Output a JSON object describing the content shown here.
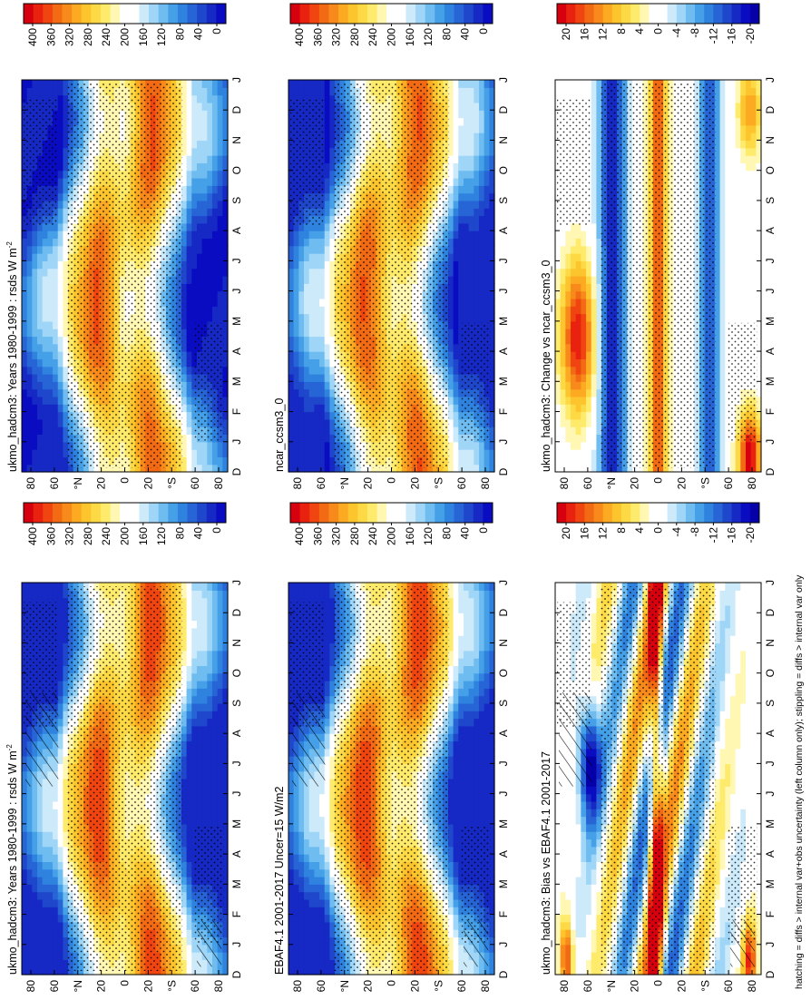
{
  "figure": {
    "orientation": "rotated-90-clockwise",
    "footnote": "hatching = diffs > internal var+obs uncertainty (left column only); stippling = diffs > internal var only"
  },
  "chart_data": [
    {
      "type": "heatmap",
      "title": "ukmo_hadcm3: Years 1980-1999 : rsds W m",
      "title_superscript": "-2",
      "x_tick_labels": [
        "D",
        "J",
        "F",
        "M",
        "A",
        "M",
        "J",
        "J",
        "A",
        "S",
        "O",
        "N",
        "D",
        "J"
      ],
      "y_tick_labels": [
        "80",
        "60",
        "°N",
        "20",
        "0",
        "20",
        "°S",
        "60",
        "80"
      ],
      "colorbar": {
        "levels": [
          400,
          380,
          360,
          340,
          320,
          300,
          280,
          260,
          240,
          220,
          200,
          180,
          160,
          140,
          120,
          100,
          80,
          60,
          40,
          20,
          0
        ],
        "tick_labels": [
          "400",
          "360",
          "320",
          "280",
          "240",
          "200",
          "160",
          "120",
          "80",
          "40",
          "0"
        ],
        "colors": [
          "#d7000f",
          "#e8220f",
          "#f04510",
          "#f36a14",
          "#f78a1a",
          "#fbaa22",
          "#fcc52e",
          "#fdda45",
          "#feea6b",
          "#fff7b2",
          "#ffffff",
          "#ffffff",
          "#cdeafa",
          "#9fd6f7",
          "#6fbcf0",
          "#45a0e8",
          "#2f83df",
          "#2765d6",
          "#1f47cc",
          "#1629c4",
          "#0a0cc2"
        ]
      },
      "hatching": true,
      "stippling": true
    },
    {
      "type": "heatmap",
      "title": "ukmo_hadcm3: Years 1980-1999 : rsds W m",
      "title_superscript": "-2",
      "x_tick_labels": [
        "D",
        "J",
        "F",
        "M",
        "A",
        "M",
        "J",
        "J",
        "A",
        "S",
        "O",
        "N",
        "D",
        "J"
      ],
      "y_tick_labels": [
        "80",
        "60",
        "°N",
        "20",
        "0",
        "20",
        "°S",
        "60",
        "80"
      ],
      "colorbar": {
        "levels": [
          400,
          380,
          360,
          340,
          320,
          300,
          280,
          260,
          240,
          220,
          200,
          180,
          160,
          140,
          120,
          100,
          80,
          60,
          40,
          20,
          0
        ],
        "tick_labels": [
          "400",
          "360",
          "320",
          "280",
          "240",
          "200",
          "160",
          "120",
          "80",
          "40",
          "0"
        ],
        "colors": [
          "#d7000f",
          "#e8220f",
          "#f04510",
          "#f36a14",
          "#f78a1a",
          "#fbaa22",
          "#fcc52e",
          "#fdda45",
          "#feea6b",
          "#fff7b2",
          "#ffffff",
          "#ffffff",
          "#cdeafa",
          "#9fd6f7",
          "#6fbcf0",
          "#45a0e8",
          "#2f83df",
          "#2765d6",
          "#1f47cc",
          "#1629c4",
          "#0a0cc2"
        ]
      },
      "hatching": false,
      "stippling": true
    },
    {
      "type": "heatmap",
      "title": "EBAF4.1 2001-2017 Uncer=15 W/m2",
      "title_superscript": "",
      "x_tick_labels": [
        "D",
        "J",
        "F",
        "M",
        "A",
        "M",
        "J",
        "J",
        "A",
        "S",
        "O",
        "N",
        "D",
        "J"
      ],
      "y_tick_labels": [
        "80",
        "60",
        "°N",
        "20",
        "0",
        "20",
        "°S",
        "60",
        "80"
      ],
      "colorbar": {
        "levels": [
          400,
          380,
          360,
          340,
          320,
          300,
          280,
          260,
          240,
          220,
          200,
          180,
          160,
          140,
          120,
          100,
          80,
          60,
          40,
          20,
          0
        ],
        "tick_labels": [
          "400",
          "360",
          "320",
          "280",
          "240",
          "200",
          "160",
          "120",
          "80",
          "40",
          "0"
        ],
        "colors": [
          "#d7000f",
          "#e8220f",
          "#f04510",
          "#f36a14",
          "#f78a1a",
          "#fbaa22",
          "#fcc52e",
          "#fdda45",
          "#feea6b",
          "#fff7b2",
          "#ffffff",
          "#ffffff",
          "#cdeafa",
          "#9fd6f7",
          "#6fbcf0",
          "#45a0e8",
          "#2f83df",
          "#2765d6",
          "#1f47cc",
          "#1629c4",
          "#0a0cc2"
        ]
      },
      "hatching": true,
      "stippling": true
    },
    {
      "type": "heatmap",
      "title": "ncar_ccsm3_0",
      "title_superscript": "",
      "x_tick_labels": [
        "D",
        "J",
        "F",
        "M",
        "A",
        "M",
        "J",
        "J",
        "A",
        "S",
        "O",
        "N",
        "D",
        "J"
      ],
      "y_tick_labels": [
        "80",
        "60",
        "°N",
        "20",
        "0",
        "20",
        "°S",
        "60",
        "80"
      ],
      "colorbar": {
        "levels": [
          400,
          380,
          360,
          340,
          320,
          300,
          280,
          260,
          240,
          220,
          200,
          180,
          160,
          140,
          120,
          100,
          80,
          60,
          40,
          20,
          0
        ],
        "tick_labels": [
          "400",
          "360",
          "320",
          "280",
          "240",
          "200",
          "160",
          "120",
          "80",
          "40",
          "0"
        ],
        "colors": [
          "#d7000f",
          "#e8220f",
          "#f04510",
          "#f36a14",
          "#f78a1a",
          "#fbaa22",
          "#fcc52e",
          "#fdda45",
          "#feea6b",
          "#fff7b2",
          "#ffffff",
          "#ffffff",
          "#cdeafa",
          "#9fd6f7",
          "#6fbcf0",
          "#45a0e8",
          "#2f83df",
          "#2765d6",
          "#1f47cc",
          "#1629c4",
          "#0a0cc2"
        ]
      },
      "hatching": false,
      "stippling": true
    },
    {
      "type": "heatmap",
      "title": "ukmo_hadcm3: Bias vs EBAF4.1 2001-2017",
      "title_superscript": "",
      "x_tick_labels": [
        "D",
        "J",
        "F",
        "M",
        "A",
        "M",
        "J",
        "J",
        "A",
        "S",
        "O",
        "N",
        "D",
        "J"
      ],
      "y_tick_labels": [
        "80",
        "60",
        "°N",
        "20",
        "0",
        "20",
        "°S",
        "60",
        "80"
      ],
      "colorbar": {
        "levels": [
          22,
          20,
          18,
          16,
          14,
          12,
          10,
          8,
          6,
          4,
          2,
          0,
          -2,
          -4,
          -6,
          -8,
          -10,
          -12,
          -14,
          -16,
          -18,
          -20,
          -22
        ],
        "tick_labels": [
          "20",
          "16",
          "12",
          "8",
          "4",
          "0",
          "-4",
          "-8",
          "-12",
          "-16",
          "-20"
        ],
        "colors": [
          "#d7000f",
          "#e8220f",
          "#f04510",
          "#f36a14",
          "#f78a1a",
          "#fbaa22",
          "#fcc52e",
          "#fdda45",
          "#feea6b",
          "#fff7b2",
          "#ffffff",
          "#ffffff",
          "#cdeafa",
          "#9fd6f7",
          "#6fbcf0",
          "#45a0e8",
          "#2f83df",
          "#2765d6",
          "#1f47cc",
          "#1629c4",
          "#0a0cc2",
          "#0500a8"
        ]
      },
      "hatching": true,
      "stippling": true
    },
    {
      "type": "heatmap",
      "title": "ukmo_hadcm3: Change vs ncar_ccsm3_0",
      "title_superscript": "",
      "x_tick_labels": [
        "D",
        "J",
        "F",
        "M",
        "A",
        "M",
        "J",
        "J",
        "A",
        "S",
        "O",
        "N",
        "D",
        "J"
      ],
      "y_tick_labels": [
        "80",
        "60",
        "°N",
        "20",
        "0",
        "20",
        "°S",
        "60",
        "80"
      ],
      "colorbar": {
        "levels": [
          22,
          20,
          18,
          16,
          14,
          12,
          10,
          8,
          6,
          4,
          2,
          0,
          -2,
          -4,
          -6,
          -8,
          -10,
          -12,
          -14,
          -16,
          -18,
          -20,
          -22
        ],
        "tick_labels": [
          "20",
          "16",
          "12",
          "8",
          "4",
          "0",
          "-4",
          "-8",
          "-12",
          "-16",
          "-20"
        ],
        "colors": [
          "#d7000f",
          "#e8220f",
          "#f04510",
          "#f36a14",
          "#f78a1a",
          "#fbaa22",
          "#fcc52e",
          "#fdda45",
          "#feea6b",
          "#fff7b2",
          "#ffffff",
          "#ffffff",
          "#cdeafa",
          "#9fd6f7",
          "#6fbcf0",
          "#45a0e8",
          "#2f83df",
          "#2765d6",
          "#1f47cc",
          "#1629c4",
          "#0a0cc2",
          "#0500a8"
        ]
      },
      "hatching": false,
      "stippling": true
    }
  ]
}
